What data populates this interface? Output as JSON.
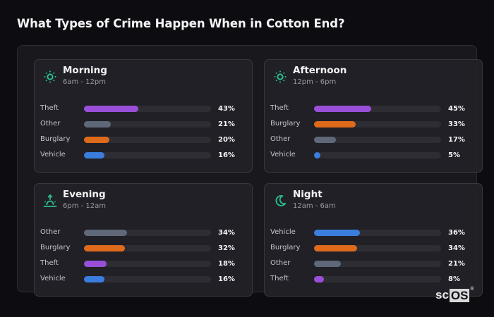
{
  "title": "What Types of Crime Happen When in Cotton End?",
  "logo": {
    "text_a": "sc",
    "text_b": "OS",
    "mark": "®"
  },
  "colors": {
    "Theft": "#9a4fd9",
    "Other": "#5f6878",
    "Burglary": "#de6a1c",
    "Vehicle": "#3b7ddd",
    "icon": "#2bbf8f"
  },
  "cards": [
    {
      "name": "Morning",
      "range": "6am - 12pm",
      "icon": "sun-icon",
      "rows": [
        {
          "label": "Theft",
          "value": 43,
          "display": "43%"
        },
        {
          "label": "Other",
          "value": 21,
          "display": "21%"
        },
        {
          "label": "Burglary",
          "value": 20,
          "display": "20%"
        },
        {
          "label": "Vehicle",
          "value": 16,
          "display": "16%"
        }
      ]
    },
    {
      "name": "Afternoon",
      "range": "12pm - 6pm",
      "icon": "sun-icon",
      "rows": [
        {
          "label": "Theft",
          "value": 45,
          "display": "45%"
        },
        {
          "label": "Burglary",
          "value": 33,
          "display": "33%"
        },
        {
          "label": "Other",
          "value": 17,
          "display": "17%"
        },
        {
          "label": "Vehicle",
          "value": 5,
          "display": "5%"
        }
      ]
    },
    {
      "name": "Evening",
      "range": "6pm - 12am",
      "icon": "sunset-icon",
      "rows": [
        {
          "label": "Other",
          "value": 34,
          "display": "34%"
        },
        {
          "label": "Burglary",
          "value": 32,
          "display": "32%"
        },
        {
          "label": "Theft",
          "value": 18,
          "display": "18%"
        },
        {
          "label": "Vehicle",
          "value": 16,
          "display": "16%"
        }
      ]
    },
    {
      "name": "Night",
      "range": "12am - 6am",
      "icon": "moon-icon",
      "rows": [
        {
          "label": "Vehicle",
          "value": 36,
          "display": "36%"
        },
        {
          "label": "Burglary",
          "value": 34,
          "display": "34%"
        },
        {
          "label": "Other",
          "value": 21,
          "display": "21%"
        },
        {
          "label": "Theft",
          "value": 8,
          "display": "8%"
        }
      ]
    }
  ],
  "chart_data": [
    {
      "type": "bar",
      "title": "Morning",
      "subtitle": "6am - 12pm",
      "orientation": "horizontal",
      "categories": [
        "Theft",
        "Other",
        "Burglary",
        "Vehicle"
      ],
      "values": [
        43,
        21,
        20,
        16
      ],
      "unit": "%",
      "xlim": [
        0,
        100
      ]
    },
    {
      "type": "bar",
      "title": "Afternoon",
      "subtitle": "12pm - 6pm",
      "orientation": "horizontal",
      "categories": [
        "Theft",
        "Burglary",
        "Other",
        "Vehicle"
      ],
      "values": [
        45,
        33,
        17,
        5
      ],
      "unit": "%",
      "xlim": [
        0,
        100
      ]
    },
    {
      "type": "bar",
      "title": "Evening",
      "subtitle": "6pm - 12am",
      "orientation": "horizontal",
      "categories": [
        "Other",
        "Burglary",
        "Theft",
        "Vehicle"
      ],
      "values": [
        34,
        32,
        18,
        16
      ],
      "unit": "%",
      "xlim": [
        0,
        100
      ]
    },
    {
      "type": "bar",
      "title": "Night",
      "subtitle": "12am - 6am",
      "orientation": "horizontal",
      "categories": [
        "Vehicle",
        "Burglary",
        "Other",
        "Theft"
      ],
      "values": [
        36,
        34,
        21,
        8
      ],
      "unit": "%",
      "xlim": [
        0,
        100
      ]
    }
  ]
}
